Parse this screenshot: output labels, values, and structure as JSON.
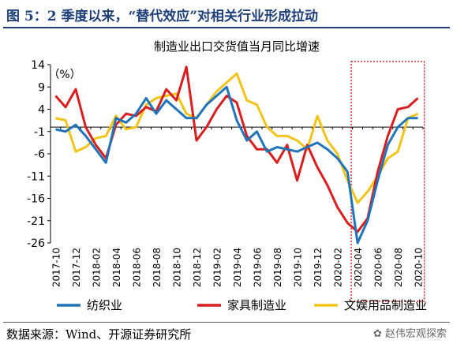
{
  "figure_title": "图 5：2 季度以来，“替代效应”对相关行业形成拉动",
  "source_note": "数据来源：Wind、开源证券研究所",
  "watermark": "赵伟宏观探索",
  "chart_data": {
    "type": "line",
    "title": "制造业出口交货值当月同比增速",
    "ylabel": "（%）",
    "ylim": [
      -26,
      14
    ],
    "yticks": [
      14,
      9,
      4,
      -1,
      -6,
      -11,
      -16,
      -21,
      -26
    ],
    "grid": false,
    "legend_position": "bottom",
    "x": [
      "2017-10",
      "2017-11",
      "2017-12",
      "2018-01",
      "2018-02",
      "2018-03",
      "2018-04",
      "2018-05",
      "2018-06",
      "2018-07",
      "2018-08",
      "2018-09",
      "2018-10",
      "2018-11",
      "2018-12",
      "2019-01",
      "2019-02",
      "2019-03",
      "2019-04",
      "2019-05",
      "2019-06",
      "2019-07",
      "2019-08",
      "2019-09",
      "2019-10",
      "2019-11",
      "2019-12",
      "2020-01",
      "2020-02",
      "2020-03",
      "2020-04",
      "2020-05",
      "2020-06",
      "2020-07",
      "2020-08",
      "2020-09",
      "2020-10"
    ],
    "xtick_labels": [
      "2017-10",
      "2017-12",
      "2018-02",
      "2018-04",
      "2018-06",
      "2018-08",
      "2018-10",
      "2018-12",
      "2019-02",
      "2019-04",
      "2019-06",
      "2019-08",
      "2019-10",
      "2019-12",
      "2020-02",
      "2020-04",
      "2020-06",
      "2020-08",
      "2020-10"
    ],
    "series": [
      {
        "name": "纺织业",
        "color": "#2075b8",
        "values": [
          -0.5,
          -1.0,
          0.5,
          -2.0,
          -5.0,
          -8.0,
          2.0,
          1.0,
          3.0,
          6.5,
          3.0,
          6.0,
          4.0,
          2.0,
          2.0,
          5.0,
          7.0,
          9.0,
          1.5,
          -3.0,
          -1.0,
          -5.5,
          -4.5,
          -5.0,
          -5.5,
          -4.5,
          -3.5,
          -5.0,
          -7.0,
          -10.0,
          -26.0,
          -21.0,
          -12.0,
          -4.0,
          0.0,
          2.0,
          2.0
        ]
      },
      {
        "name": "家具制造业",
        "color": "#d81e1e",
        "values": [
          7.0,
          4.5,
          8.5,
          0.0,
          -4.0,
          -7.0,
          0.5,
          3.0,
          2.5,
          4.5,
          3.5,
          8.5,
          6.0,
          13.5,
          -3.0,
          0.0,
          4.0,
          7.0,
          5.5,
          -2.0,
          -5.0,
          -5.0,
          -8.0,
          -4.0,
          -12.0,
          -4.0,
          -9.0,
          -13.0,
          -18.0,
          -21.5,
          -23.5,
          -20.5,
          -10.0,
          -2.0,
          4.0,
          4.5,
          6.5
        ]
      },
      {
        "name": "文娱用品制造业",
        "color": "#f2c318",
        "values": [
          2.0,
          1.5,
          -5.5,
          -4.5,
          -2.5,
          -2.0,
          2.5,
          -0.5,
          0.0,
          5.0,
          6.5,
          7.0,
          7.5,
          3.0,
          2.0,
          5.0,
          8.0,
          10.0,
          12.0,
          6.0,
          5.0,
          0.0,
          -2.0,
          -2.0,
          -3.0,
          -5.0,
          2.5,
          -3.0,
          -6.0,
          -12.0,
          -17.0,
          -14.5,
          -11.0,
          -7.0,
          -5.5,
          2.0,
          3.0
        ]
      }
    ]
  }
}
